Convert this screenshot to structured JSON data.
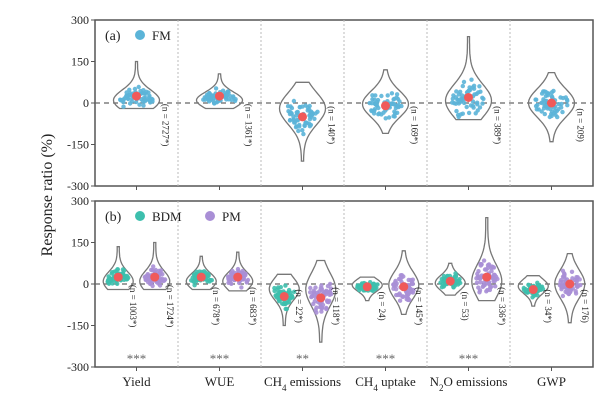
{
  "chart_data": {
    "type": "violin",
    "ylabel": "Response ratio (%)",
    "ylim": [
      -300,
      300
    ],
    "yticks": [
      "300",
      "150",
      "0",
      "-150",
      "-300"
    ],
    "ytick_values": [
      300,
      150,
      0,
      -150,
      -300
    ],
    "grid": "vertical dotted separators between categories",
    "categories": [
      {
        "label": "Yield",
        "sub": ""
      },
      {
        "label": "WUE",
        "sub": ""
      },
      {
        "label": "CH",
        "sub": "4",
        "rest": " emissions"
      },
      {
        "label": "CH",
        "sub": "4",
        "rest": " uptake"
      },
      {
        "label": "N",
        "sub": "2",
        "rest": "O emissions"
      },
      {
        "label": "GWP",
        "sub": ""
      }
    ],
    "colors": {
      "FM": "#5bb4d8",
      "BDM": "#3dbfad",
      "PM": "#a98fd6",
      "mean": "#f05a5a"
    },
    "panels": [
      {
        "label": "(a)",
        "legend": [
          {
            "name": "FM",
            "color": "#5bb4d8"
          }
        ],
        "series": [
          {
            "name": "FM",
            "groups": [
              {
                "mean": 25,
                "min": -20,
                "max": 150,
                "n": "(n = 2727*)"
              },
              {
                "mean": 25,
                "min": -20,
                "max": 105,
                "n": "(n = 1361*)"
              },
              {
                "mean": -50,
                "min": -210,
                "max": 75,
                "n": "(n = 140*)"
              },
              {
                "mean": -10,
                "min": -110,
                "max": 120,
                "n": "(n = 169*)"
              },
              {
                "mean": 20,
                "min": -60,
                "max": 240,
                "n": "(n = 389*)"
              },
              {
                "mean": 0,
                "min": -140,
                "max": 110,
                "n": "(n = 209)"
              }
            ]
          }
        ]
      },
      {
        "label": "(b)",
        "legend": [
          {
            "name": "BDM",
            "color": "#3dbfad"
          },
          {
            "name": "PM",
            "color": "#a98fd6"
          }
        ],
        "series": [
          {
            "name": "BDM",
            "groups": [
              {
                "mean": 25,
                "min": -20,
                "max": 135,
                "n": "(n = 1003*)"
              },
              {
                "mean": 25,
                "min": -20,
                "max": 100,
                "n": "(n = 678*)"
              },
              {
                "mean": -45,
                "min": -150,
                "max": 35,
                "n": "(n = 22*)"
              },
              {
                "mean": -10,
                "min": -60,
                "max": 25,
                "n": "(n = 24)"
              },
              {
                "mean": 10,
                "min": -40,
                "max": 75,
                "n": "(n = 53)"
              },
              {
                "mean": -20,
                "min": -80,
                "max": 30,
                "n": "(n = 34*)"
              }
            ]
          },
          {
            "name": "PM",
            "groups": [
              {
                "mean": 25,
                "min": -20,
                "max": 150,
                "n": "(n = 1724*)"
              },
              {
                "mean": 25,
                "min": -25,
                "max": 115,
                "n": "(n = 683*)"
              },
              {
                "mean": -50,
                "min": -210,
                "max": 85,
                "n": "(n = 118*)"
              },
              {
                "mean": -10,
                "min": -110,
                "max": 120,
                "n": "(n = 145*)"
              },
              {
                "mean": 25,
                "min": -60,
                "max": 240,
                "n": "(n = 336*)"
              },
              {
                "mean": 0,
                "min": -140,
                "max": 110,
                "n": "(n = 176)"
              }
            ]
          }
        ],
        "significance": [
          "***",
          "***",
          "**",
          "***",
          "***",
          ""
        ]
      }
    ]
  }
}
